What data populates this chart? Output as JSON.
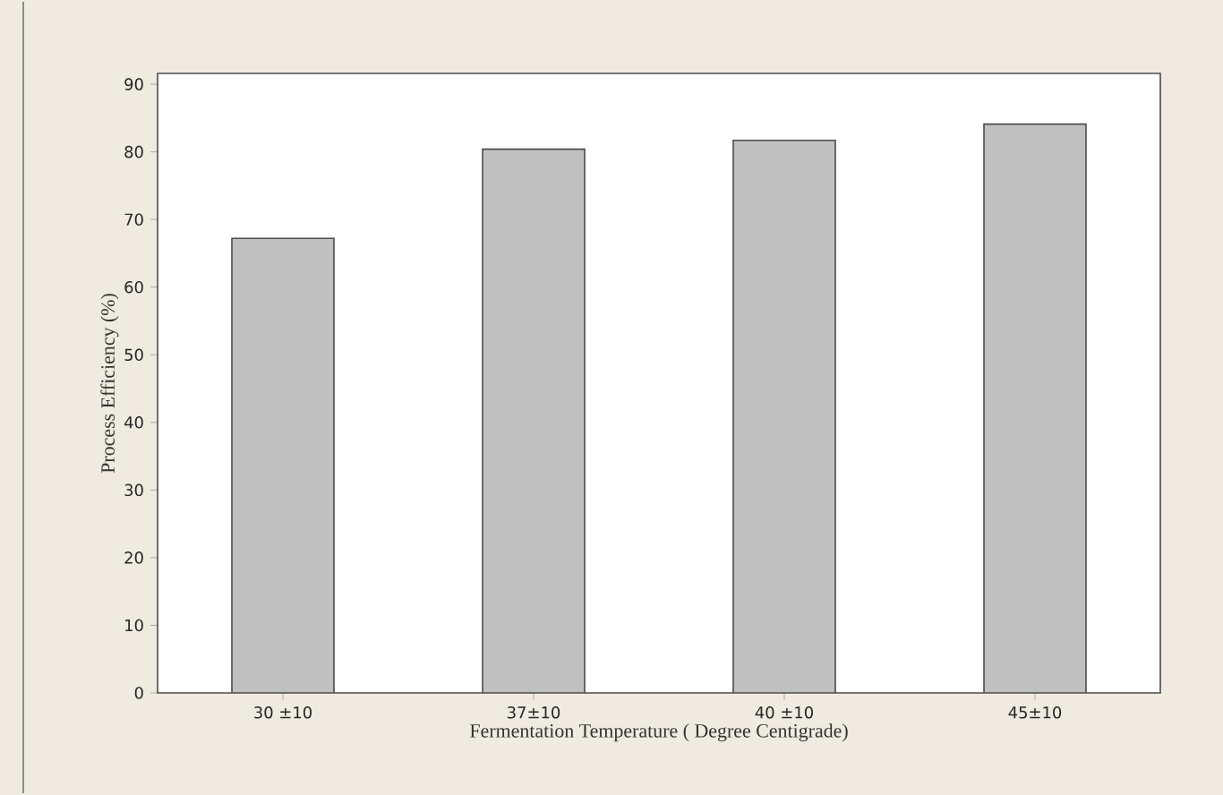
{
  "chart_data": {
    "type": "bar",
    "xlabel": "Fermentation Temperature ( Degree Centigrade)",
    "ylabel": "Process Efficiency (%)",
    "categories": [
      "30 ±10",
      "37±10",
      "40 ±10",
      "45±10"
    ],
    "values": [
      67.2,
      80.4,
      81.7,
      84.1
    ],
    "color": "#c0c0c0",
    "ylim": [
      0,
      91.6
    ],
    "yticks": [
      0,
      10,
      20,
      30,
      40,
      50,
      60,
      70,
      80,
      90
    ],
    "grid": false
  }
}
